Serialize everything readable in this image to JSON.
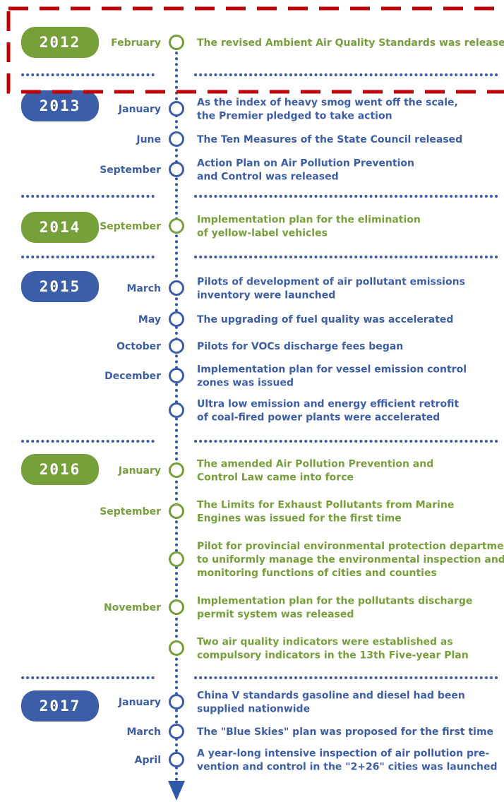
{
  "timeline": [
    {
      "year": "2012",
      "events": [
        {
          "month": "February",
          "lines": [
            "The revised Ambient Air Quality Standards was released"
          ]
        }
      ]
    },
    {
      "year": "2013",
      "events": [
        {
          "month": "January",
          "lines": [
            "As the index of heavy smog went off the scale,",
            "the Premier pledged to take action"
          ]
        },
        {
          "month": "June",
          "lines": [
            "The Ten Measures of the State Council released"
          ]
        },
        {
          "month": "September",
          "lines": [
            "Action Plan on Air Pollution Prevention",
            "and Control was released"
          ]
        }
      ]
    },
    {
      "year": "2014",
      "events": [
        {
          "month": "September",
          "lines": [
            "Implementation plan for the elimination",
            "of yellow-label vehicles"
          ]
        }
      ]
    },
    {
      "year": "2015",
      "events": [
        {
          "month": "March",
          "lines": [
            "Pilots of development of air pollutant emissions",
            "inventory were launched"
          ]
        },
        {
          "month": "May",
          "lines": [
            "The upgrading of fuel quality was accelerated"
          ]
        },
        {
          "month": "October",
          "lines": [
            "Pilots for VOCs discharge fees began"
          ]
        },
        {
          "month": "December",
          "lines": [
            "Implementation plan for vessel emission control",
            "zones was issued"
          ]
        },
        {
          "lines": [
            "Ultra low emission and energy efficient retrofit",
            "of coal-fired power plants were accelerated"
          ]
        }
      ]
    },
    {
      "year": "2016",
      "events": [
        {
          "month": "January",
          "lines": [
            "The amended Air Pollution Prevention and",
            "Control Law came into force"
          ]
        },
        {
          "month": "September",
          "lines": [
            "The Limits for Exhaust Pollutants from Marine",
            "Engines was issued for the first time"
          ]
        },
        {
          "lines": [
            "Pilot for provincial environmental protection departments",
            "to uniformly manage the environmental inspection and",
            "monitoring functions of cities and counties"
          ]
        },
        {
          "month": "November",
          "lines": [
            "Implementation plan for the pollutants discharge",
            "permit system was released"
          ]
        },
        {
          "lines": [
            "Two air quality indicators were established as",
            "compulsory indicators in the 13th Five-year Plan"
          ]
        }
      ]
    },
    {
      "year": "2017",
      "events": [
        {
          "month": "January",
          "lines": [
            "China Ⅴ standards gasoline and diesel had been",
            "supplied nationwide"
          ]
        },
        {
          "month": "March",
          "lines": [
            "The \"Blue Skies\" plan was proposed for the first time"
          ]
        },
        {
          "month": "April",
          "lines": [
            "A year-long intensive inspection of air pollution pre-",
            "vention and control  in the \"2+26\" cities was launched"
          ]
        }
      ]
    }
  ]
}
